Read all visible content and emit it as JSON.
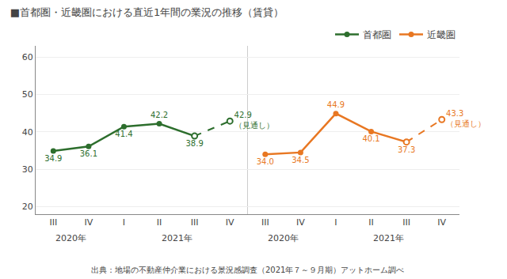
{
  "chart_data": {
    "type": "line",
    "title": "■首都圏・近畿圏における直近1年間の業況の推移（賃貸）",
    "footnote": "出典：地場の不動産仲介業における景況感調査（2021年７～９月期）アットホーム調べ",
    "categories": [
      "III",
      "IV",
      "I",
      "II",
      "III",
      "IV",
      "III",
      "IV",
      "I",
      "II",
      "III",
      "IV"
    ],
    "x_groups": [
      {
        "label": "2020年",
        "from": 0,
        "to": 1
      },
      {
        "label": "2021年",
        "from": 2,
        "to": 5
      },
      {
        "label": "2020年",
        "from": 6,
        "to": 7
      },
      {
        "label": "2021年",
        "from": 8,
        "to": 11
      }
    ],
    "series": [
      {
        "name": "首都圏",
        "color": "#2d6e2d",
        "marker": "circle",
        "values": [
          34.9,
          36.1,
          41.4,
          42.2,
          38.9,
          null,
          null,
          null,
          null,
          null,
          null,
          null
        ],
        "value_labels": [
          "34.9",
          "36.1",
          "41.4",
          "42.2",
          "38.9",
          null,
          null,
          null,
          null,
          null,
          null,
          null
        ],
        "forecast_values": [
          null,
          null,
          null,
          null,
          38.9,
          42.9,
          null,
          null,
          null,
          null,
          null,
          null
        ],
        "forecast_value_labels": [
          null,
          null,
          null,
          null,
          null,
          "42.9",
          null,
          null,
          null,
          null,
          null,
          null
        ]
      },
      {
        "name": "近畿圏",
        "color": "#e87722",
        "marker": "circle",
        "values": [
          null,
          null,
          null,
          null,
          null,
          null,
          34.0,
          34.5,
          44.9,
          40.1,
          37.3,
          null
        ],
        "value_labels": [
          null,
          null,
          null,
          null,
          null,
          null,
          "34.0",
          "34.5",
          "44.9",
          "40.1",
          "37.3",
          null
        ],
        "forecast_values": [
          null,
          null,
          null,
          null,
          null,
          null,
          null,
          null,
          null,
          null,
          37.3,
          43.3
        ],
        "forecast_value_labels": [
          null,
          null,
          null,
          null,
          null,
          null,
          null,
          null,
          null,
          null,
          null,
          "43.3"
        ]
      }
    ],
    "forecast_note": "（見通し）",
    "ylim": [
      18,
      63
    ],
    "yticks": [
      20,
      30,
      40,
      50,
      60
    ],
    "grid": true,
    "legend": "top right",
    "data_labels": true
  }
}
